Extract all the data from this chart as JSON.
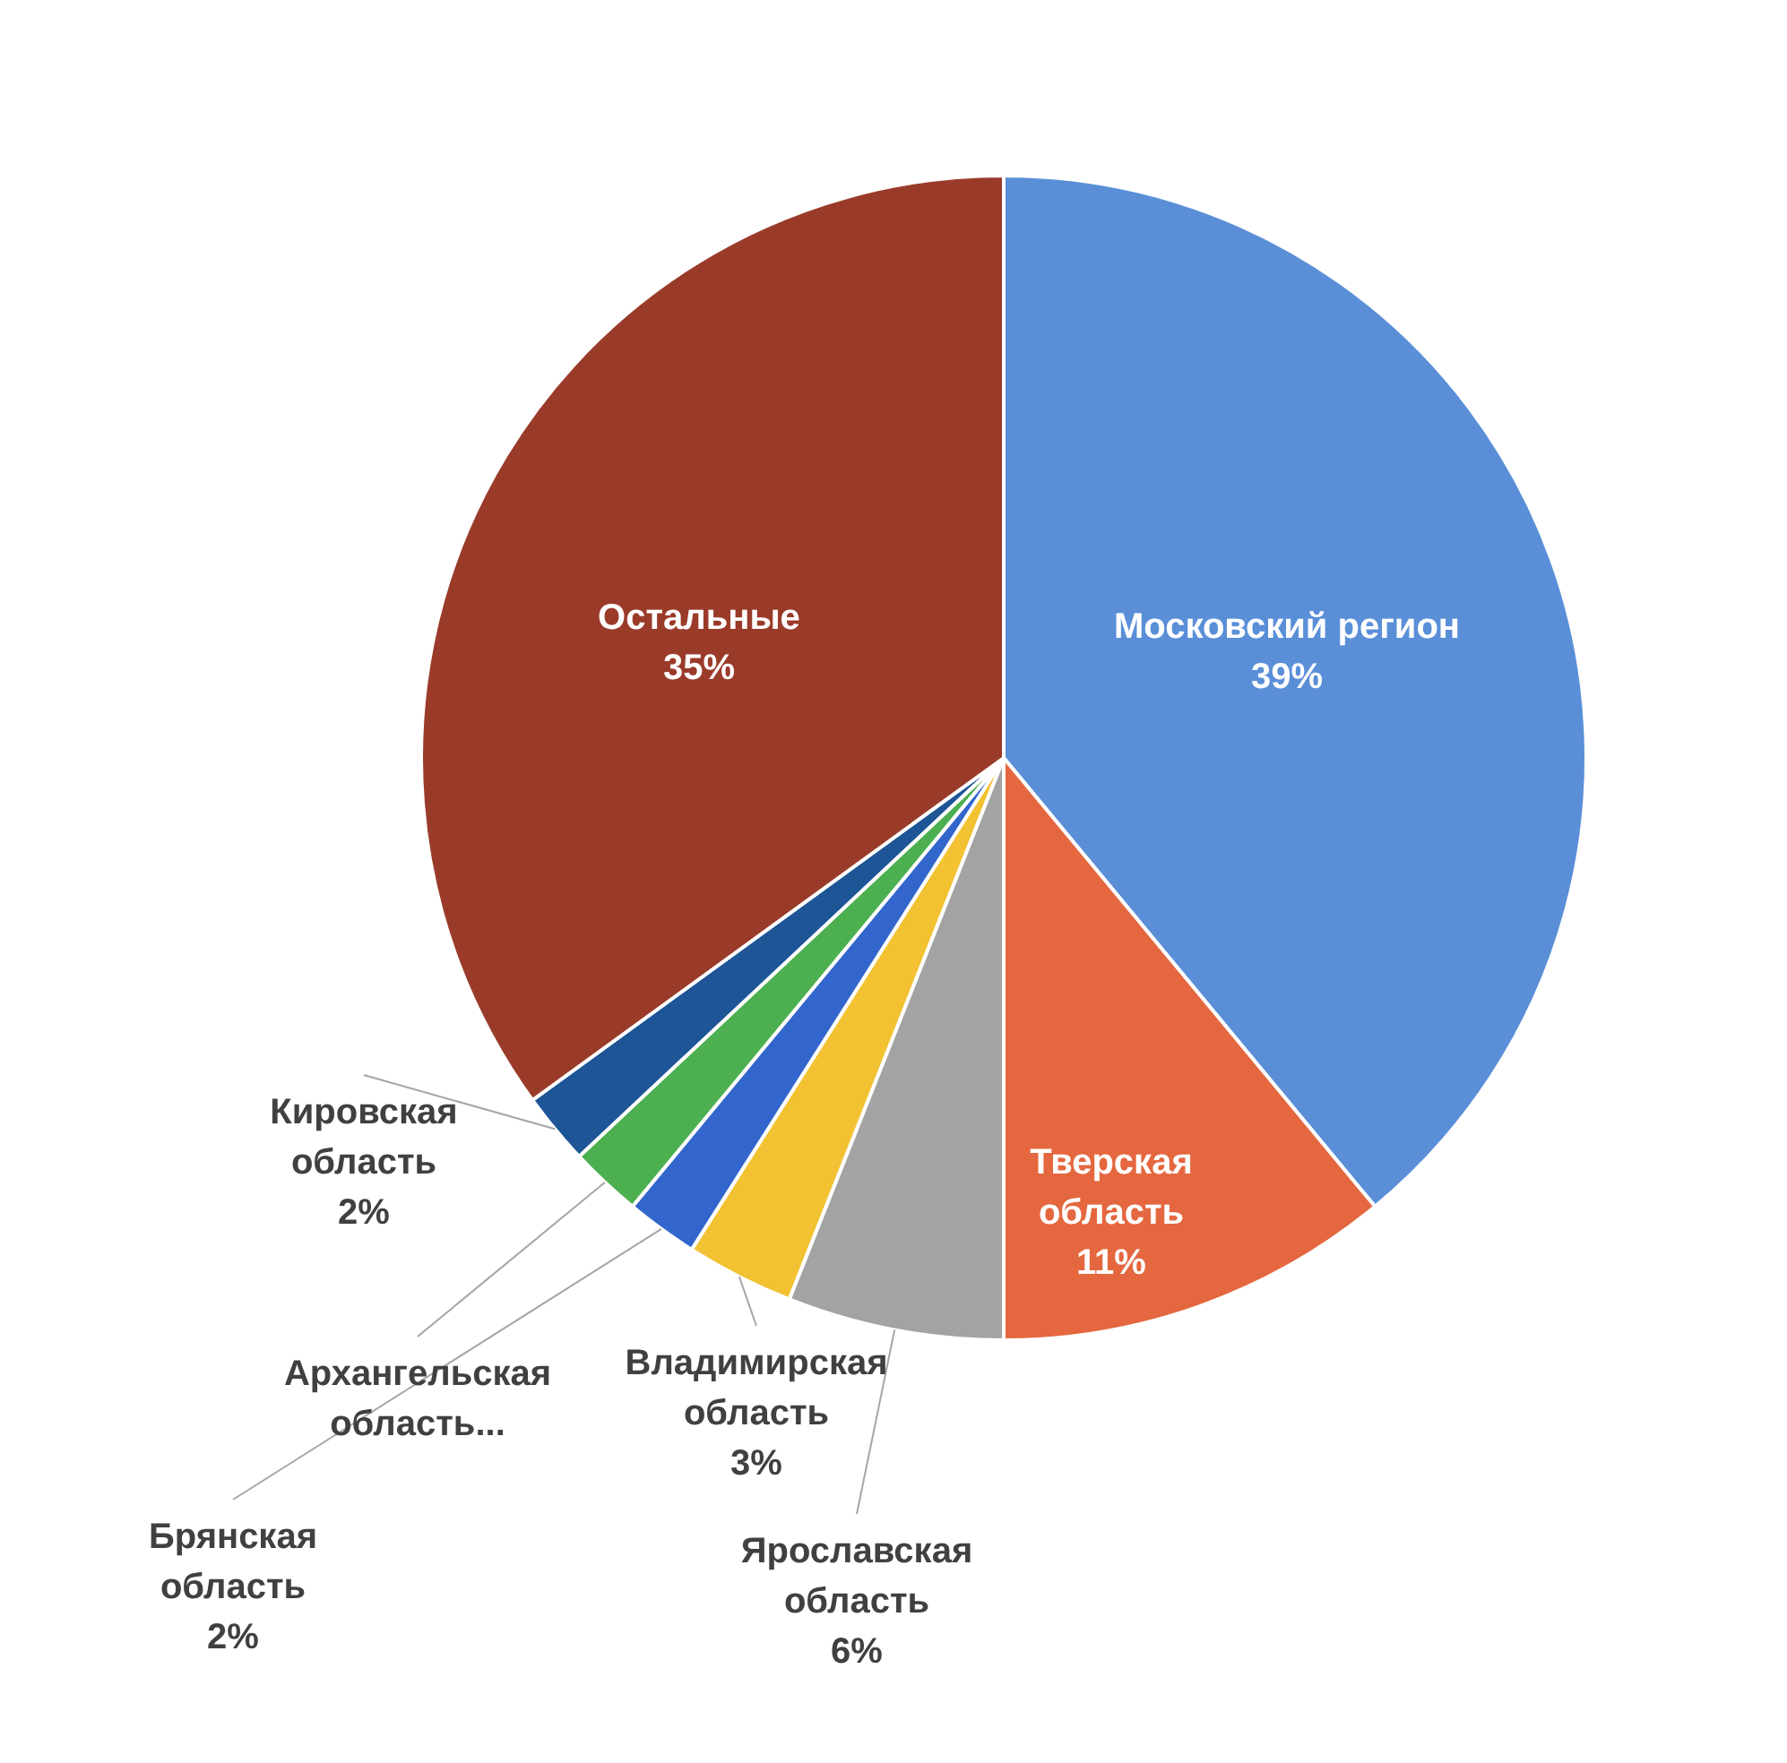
{
  "chart_data": {
    "type": "pie",
    "categories": [
      "Московский регион",
      "Тверская область",
      "Ярославская область",
      "Владимирская область",
      "Брянская область",
      "Архангельская область...",
      "Кировская область",
      "Остальные"
    ],
    "values": [
      39,
      11,
      6,
      3,
      2,
      2,
      2,
      35
    ],
    "colors": [
      "#5a8fd8",
      "#e5673f",
      "#a3a3a3",
      "#f2c232",
      "#3366cc",
      "#4caf50",
      "#1d5596",
      "#9a3b2a"
    ],
    "value_labels": [
      "39%",
      "11%",
      "6%",
      "3%",
      "2%",
      null,
      "2%",
      "35%"
    ],
    "legend": false
  }
}
